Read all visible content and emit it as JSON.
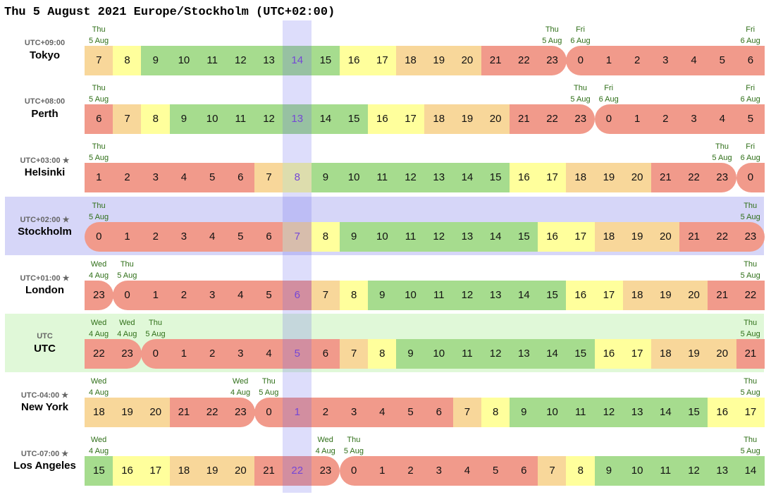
{
  "title": "Thu 5 August 2021 Europe/Stockholm (UTC+02:00)",
  "colors": {
    "night": "#f19a8b",
    "edge": "#f8d79a",
    "shoulder": "#ffff9c",
    "work": "#a6dc8e",
    "column_highlight": "#d8d8fa",
    "date_text": "#2f6f18",
    "current_hour_text": "#7a3fd0"
  },
  "zones": [
    {
      "offset": "UTC+09:00",
      "city": "Tokyo",
      "start": 7,
      "highlight": null,
      "dates": [
        {
          "col": 0,
          "day": "Thu",
          "date": "5 Aug"
        },
        {
          "col": 16,
          "day": "Thu",
          "date": "5 Aug"
        },
        {
          "col": 17,
          "day": "Fri",
          "date": "6 Aug"
        },
        {
          "col": 23,
          "day": "Fri",
          "date": "6 Aug"
        }
      ]
    },
    {
      "offset": "UTC+08:00",
      "city": "Perth",
      "start": 6,
      "highlight": null,
      "dates": [
        {
          "col": 0,
          "day": "Thu",
          "date": "5 Aug"
        },
        {
          "col": 17,
          "day": "Thu",
          "date": "5 Aug"
        },
        {
          "col": 18,
          "day": "Fri",
          "date": "6 Aug"
        },
        {
          "col": 23,
          "day": "Fri",
          "date": "6 Aug"
        }
      ]
    },
    {
      "offset": "UTC+03:00 ★",
      "city": "Helsinki",
      "start": 1,
      "highlight": null,
      "dates": [
        {
          "col": 0,
          "day": "Thu",
          "date": "5 Aug"
        },
        {
          "col": 22,
          "day": "Thu",
          "date": "5 Aug"
        },
        {
          "col": 23,
          "day": "Fri",
          "date": "6 Aug"
        }
      ]
    },
    {
      "offset": "UTC+02:00 ★",
      "city": "Stockholm",
      "start": 0,
      "highlight": "#d6d6f8",
      "dates": [
        {
          "col": 0,
          "day": "Thu",
          "date": "5 Aug"
        },
        {
          "col": 23,
          "day": "Thu",
          "date": "5 Aug"
        }
      ]
    },
    {
      "offset": "UTC+01:00 ★",
      "city": "London",
      "start": 23,
      "highlight": null,
      "dates": [
        {
          "col": 0,
          "day": "Wed",
          "date": "4 Aug"
        },
        {
          "col": 1,
          "day": "Thu",
          "date": "5 Aug"
        },
        {
          "col": 23,
          "day": "Thu",
          "date": "5 Aug"
        }
      ]
    },
    {
      "offset": "UTC",
      "city": "UTC",
      "start": 22,
      "highlight": "#e0f8d8",
      "dates": [
        {
          "col": 0,
          "day": "Wed",
          "date": "4 Aug"
        },
        {
          "col": 1,
          "day": "Wed",
          "date": "4 Aug"
        },
        {
          "col": 2,
          "day": "Thu",
          "date": "5 Aug"
        },
        {
          "col": 23,
          "day": "Thu",
          "date": "5 Aug"
        }
      ]
    },
    {
      "offset": "UTC-04:00 ★",
      "city": "New York",
      "start": 18,
      "highlight": null,
      "dates": [
        {
          "col": 0,
          "day": "Wed",
          "date": "4 Aug"
        },
        {
          "col": 5,
          "day": "Wed",
          "date": "4 Aug"
        },
        {
          "col": 6,
          "day": "Thu",
          "date": "5 Aug"
        },
        {
          "col": 23,
          "day": "Thu",
          "date": "5 Aug"
        }
      ]
    },
    {
      "offset": "UTC-07:00 ★",
      "city": "Los Angeles",
      "start": 15,
      "highlight": null,
      "dates": [
        {
          "col": 0,
          "day": "Wed",
          "date": "4 Aug"
        },
        {
          "col": 8,
          "day": "Wed",
          "date": "4 Aug"
        },
        {
          "col": 9,
          "day": "Thu",
          "date": "5 Aug"
        },
        {
          "col": 23,
          "day": "Thu",
          "date": "5 Aug"
        }
      ]
    }
  ],
  "current_column": 7
}
